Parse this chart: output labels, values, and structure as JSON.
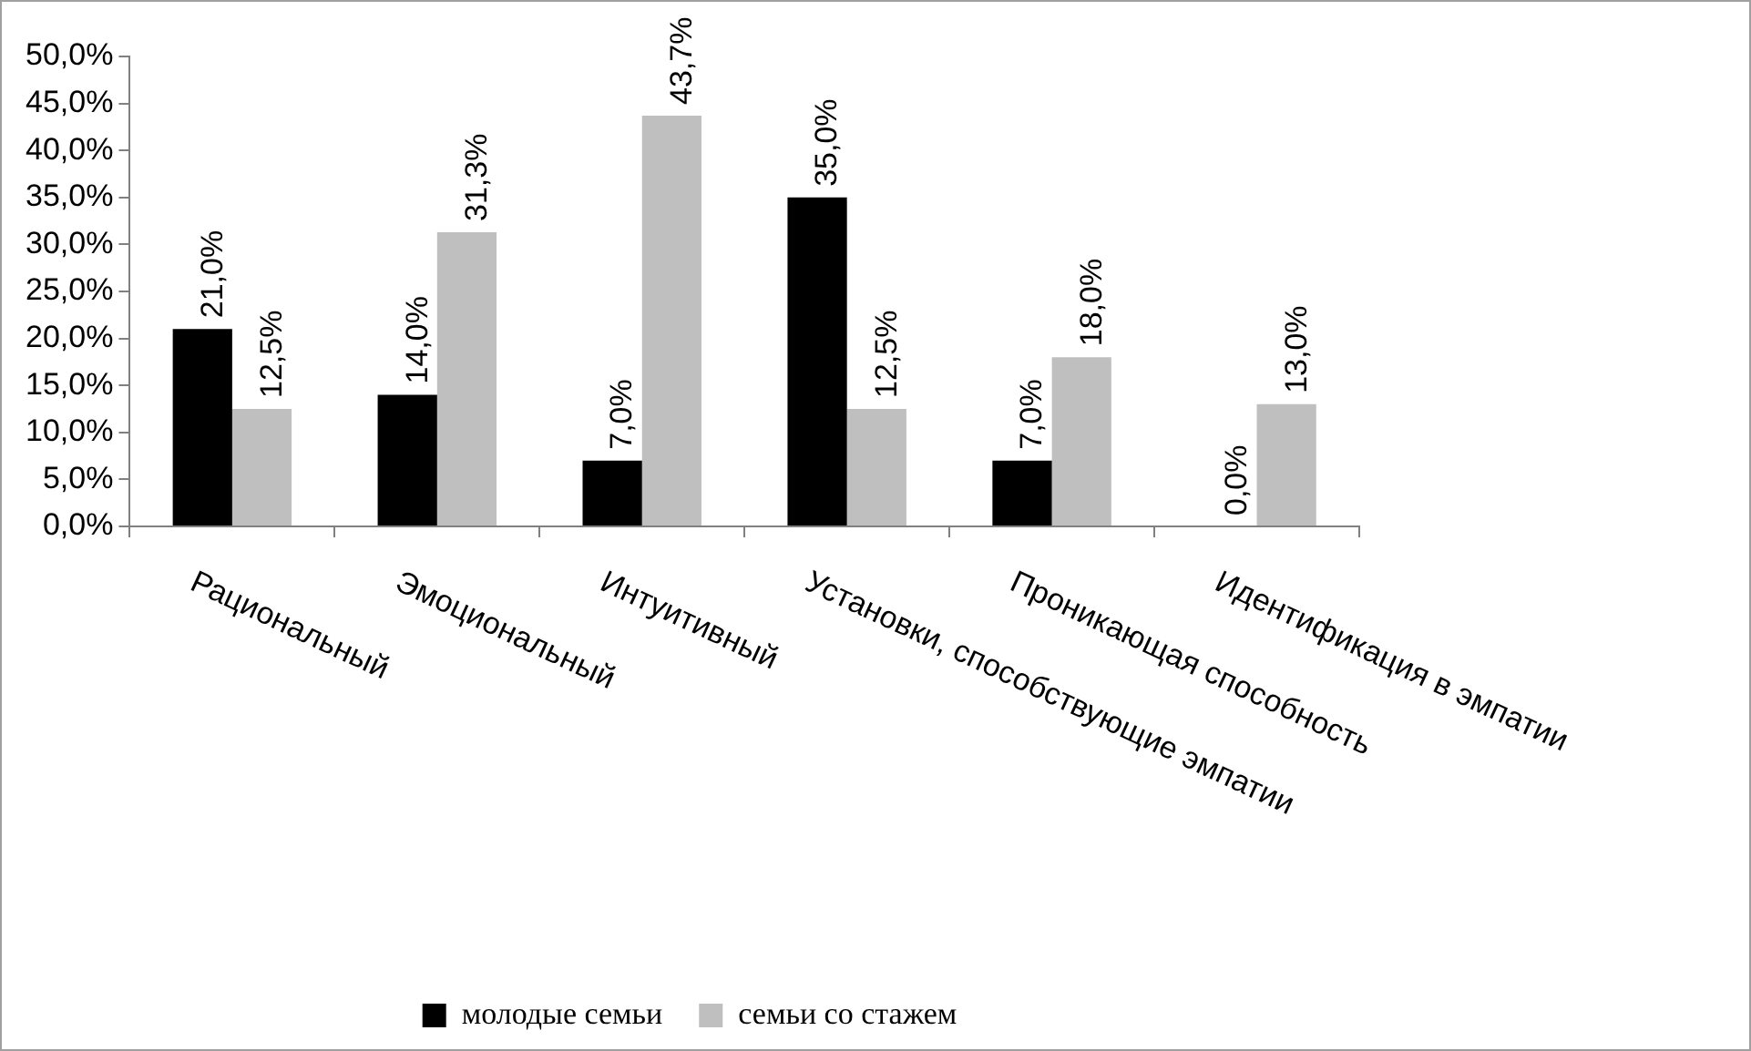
{
  "chart_data": {
    "type": "bar",
    "categories": [
      "Рациональный",
      "Эмоциональный",
      "Интуитивный",
      "Установки, способствующие эмпатии",
      "Проникающая способность",
      "Идентификация в эмпатии"
    ],
    "series": [
      {
        "name": "молодые семьи",
        "color": "#000000",
        "values": [
          21.0,
          14.0,
          7.0,
          35.0,
          7.0,
          0.0
        ],
        "value_labels": [
          "21,0%",
          "14,0%",
          "7,0%",
          "35,0%",
          "7,0%",
          "0,0%"
        ]
      },
      {
        "name": "семьи со стажем",
        "color": "#bfbfbf",
        "values": [
          12.5,
          31.3,
          43.7,
          12.5,
          18.0,
          13.0
        ],
        "value_labels": [
          "12,5%",
          "31,3%",
          "43,7%",
          "12,5%",
          "18,0%",
          "13,0%"
        ]
      }
    ],
    "ylim": [
      0,
      50
    ],
    "yticks": [
      {
        "value": 0,
        "label": "0,0%"
      },
      {
        "value": 5,
        "label": "5,0%"
      },
      {
        "value": 10,
        "label": "10,0%"
      },
      {
        "value": 15,
        "label": "15,0%"
      },
      {
        "value": 20,
        "label": "20,0%"
      },
      {
        "value": 25,
        "label": "25,0%"
      },
      {
        "value": 30,
        "label": "30,0%"
      },
      {
        "value": 35,
        "label": "35,0%"
      },
      {
        "value": 40,
        "label": "40,0%"
      },
      {
        "value": 45,
        "label": "45,0%"
      },
      {
        "value": 50,
        "label": "50,0%"
      }
    ],
    "grid": false,
    "legend": "bottom"
  }
}
